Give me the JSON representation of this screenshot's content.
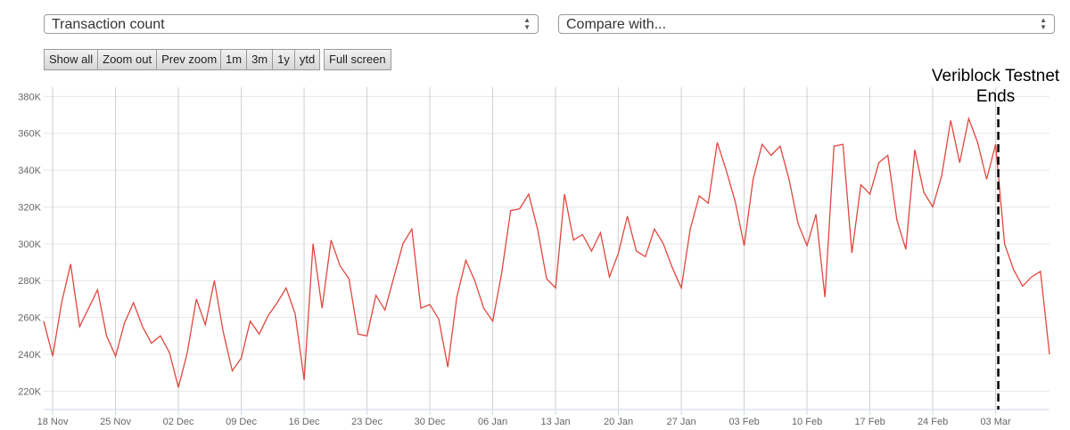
{
  "controls": {
    "metric_select": "Transaction count",
    "compare_select": "Compare with...",
    "zoom_buttons": [
      "Show all",
      "Zoom out",
      "Prev zoom"
    ],
    "range_buttons": [
      "1m",
      "3m",
      "1y",
      "ytd"
    ],
    "fullscreen_button": "Full screen"
  },
  "chart_data": {
    "type": "line",
    "title": "",
    "xlabel": "",
    "ylabel": "",
    "ylim": [
      210000,
      385000
    ],
    "yticks": [
      220000,
      240000,
      260000,
      280000,
      300000,
      320000,
      340000,
      360000,
      380000
    ],
    "ytick_labels": [
      "220K",
      "240K",
      "260K",
      "280K",
      "300K",
      "320K",
      "340K",
      "360K",
      "380K"
    ],
    "xtick_labels": [
      "18 Nov",
      "25 Nov",
      "02 Dec",
      "09 Dec",
      "16 Dec",
      "23 Dec",
      "30 Dec",
      "06 Jan",
      "13 Jan",
      "20 Jan",
      "27 Jan",
      "03 Feb",
      "10 Feb",
      "17 Feb",
      "24 Feb",
      "03 Mar"
    ],
    "x_start": "2018-11-18",
    "x_end": "2019-03-10",
    "grid": true,
    "color": "#e0473e",
    "series": [
      {
        "name": "",
        "values": [
          258000,
          239000,
          268000,
          289000,
          255000,
          265000,
          275000,
          250000,
          239000,
          257000,
          268000,
          255000,
          246000,
          250000,
          241000,
          222000,
          241000,
          270000,
          256000,
          280000,
          252000,
          231000,
          238000,
          258000,
          251000,
          261000,
          268000,
          276000,
          262000,
          226000,
          300000,
          265000,
          302000,
          288000,
          281000,
          251000,
          250000,
          272000,
          264000,
          282000,
          300000,
          308000,
          265000,
          267000,
          259000,
          233000,
          271000,
          291000,
          280000,
          265000,
          258000,
          284000,
          318000,
          319000,
          327000,
          308000,
          281000,
          276000,
          327000,
          302000,
          305000,
          296000,
          306000,
          282000,
          295000,
          315000,
          296000,
          293000,
          308000,
          300000,
          287000,
          276000,
          308000,
          326000,
          322000,
          355000,
          340000,
          323000,
          299000,
          335000,
          354000,
          348000,
          353000,
          335000,
          311000,
          299000,
          316000,
          271000,
          353000,
          354000,
          295000,
          332000,
          327000,
          344000,
          348000,
          313000,
          297000,
          351000,
          328000,
          320000,
          337000,
          367000,
          344000,
          368000,
          355000,
          335000,
          354000,
          300000,
          286000,
          277000,
          282000,
          285000,
          240000
        ]
      }
    ],
    "annotations": [
      {
        "text_line1": "Veriblock Testnet",
        "text_line2": "Ends",
        "date": "2019-03-04",
        "style": "dashed-vertical-line"
      }
    ]
  }
}
